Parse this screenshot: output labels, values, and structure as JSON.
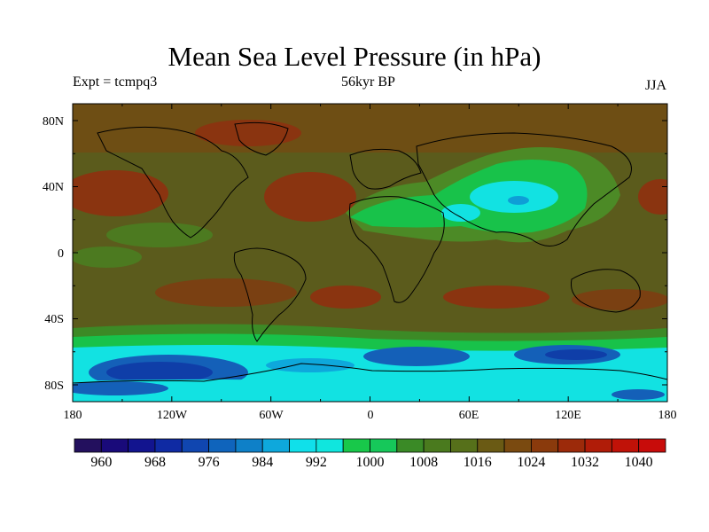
{
  "title": "Mean Sea Level Pressure (in hPa)",
  "subtitle_left": "Expt = tcmpq3",
  "subtitle_center": "56kyr BP",
  "subtitle_right": "JJA",
  "lat_ticks": [
    "80N",
    "40N",
    "0",
    "40S",
    "80S"
  ],
  "lon_ticks": [
    "180",
    "120W",
    "60W",
    "0",
    "60E",
    "120E",
    "180"
  ],
  "colorbar": {
    "labels": [
      "960",
      "968",
      "976",
      "984",
      "992",
      "1000",
      "1008",
      "1016",
      "1024",
      "1032",
      "1040"
    ],
    "colors": [
      "#23105e",
      "#190a7a",
      "#12148f",
      "#0f2aa3",
      "#1046b0",
      "#0f64bc",
      "#0e80c8",
      "#0ea8dc",
      "#10e0ea",
      "#10e6de",
      "#18c84a",
      "#16c85a",
      "#3a8a26",
      "#4a7a1e",
      "#56701a",
      "#6a5a14",
      "#7a4a10",
      "#8a3a0c",
      "#9c2a0a",
      "#b01c08",
      "#c01208",
      "#c80c0a"
    ],
    "colors_note": ""
  },
  "colors": {
    "ocean_mid": "#5a5a1a",
    "high": "#8a3410",
    "green": "#18c24a",
    "cyan": "#12e2e2",
    "blue": "#1460b8",
    "deep_blue": "#0f3ea8"
  }
}
